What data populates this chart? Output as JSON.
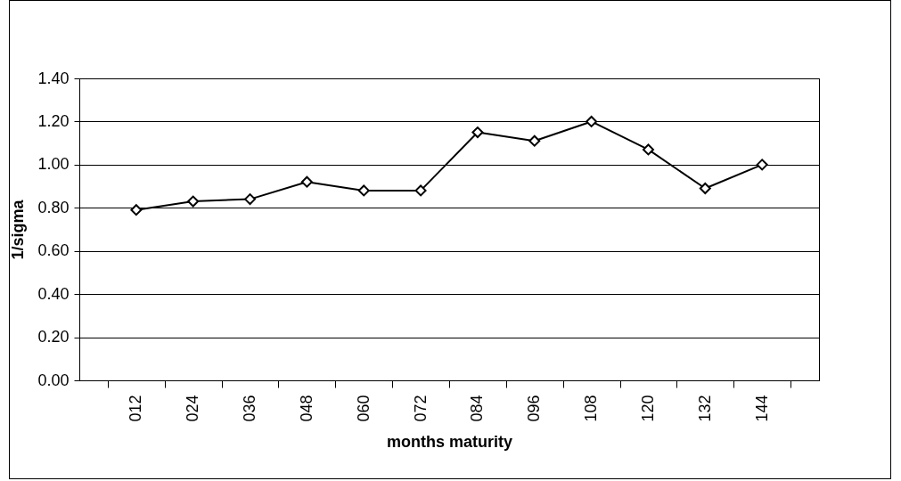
{
  "chart_data": {
    "type": "line",
    "xlabel": "months maturity",
    "ylabel": "1/sigma",
    "categories": [
      "012",
      "024",
      "036",
      "048",
      "060",
      "072",
      "084",
      "096",
      "108",
      "120",
      "132",
      "144"
    ],
    "series": [
      {
        "color": "#000000",
        "values": [
          0.79,
          0.83,
          0.84,
          0.92,
          0.88,
          0.88,
          1.15,
          1.11,
          1.2,
          1.07,
          0.89,
          1.0
        ]
      }
    ],
    "ylim": [
      0,
      1.4
    ],
    "yticks": [
      {
        "value": 0,
        "label": "0.00"
      },
      {
        "value": 0.2,
        "label": "0.20"
      },
      {
        "value": 0.4,
        "label": "0.40"
      },
      {
        "value": 0.6,
        "label": "0.60"
      },
      {
        "value": 0.8,
        "label": "0.80"
      },
      {
        "value": 1,
        "label": "1.00"
      },
      {
        "value": 1.2,
        "label": "1.20"
      },
      {
        "value": 1.4,
        "label": "1.40"
      }
    ],
    "grid": "y",
    "marker": "diamond",
    "line_style": "solid"
  }
}
